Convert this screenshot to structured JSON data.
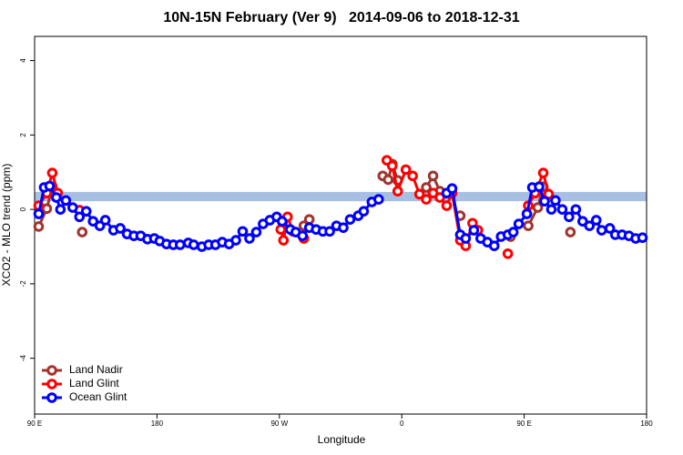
{
  "chart_data": {
    "type": "line",
    "title": "10N-15N February (Ver 9)   2014-09-06 to 2018-12-31",
    "xlabel": "Longitude",
    "ylabel": "XCO2 - MLO trend (ppm)",
    "xlim": [
      90,
      540
    ],
    "ylim": [
      -5.5,
      4.65
    ],
    "xticks": [
      {
        "value": 90,
        "label": "90 E"
      },
      180,
      {
        "value": 270,
        "label": "90 W"
      },
      {
        "value": 360,
        "label": "0"
      },
      {
        "value": 450,
        "label": "90 E"
      },
      {
        "value": 540,
        "label": "180"
      }
    ],
    "yticks": [
      -4,
      -2,
      0,
      2,
      4
    ],
    "band_ylim": [
      0.22,
      0.47
    ],
    "band_color": "#a7bfe3",
    "legend": "bottomleft",
    "series": [
      {
        "name": "Land Nadir",
        "color": "#a0342f",
        "x": [
          93,
          99,
          103,
          null,
          125,
          null,
          288,
          292,
          null,
          346,
          350,
          353,
          357,
          null,
          378,
          383,
          388,
          null,
          403,
          null,
          440,
          null,
          453,
          460,
          464,
          null,
          484
        ],
        "values": [
          -0.46,
          0.02,
          0.61,
          null,
          -0.61,
          null,
          -0.44,
          -0.27,
          null,
          0.9,
          0.8,
          1.22,
          0.78,
          null,
          0.59,
          0.9,
          0.49,
          null,
          -0.17,
          null,
          -0.73,
          null,
          -0.44,
          0.05,
          0.61,
          null,
          -0.61
        ]
      },
      {
        "name": "Land Glint",
        "color": "#ff0000",
        "x": [
          93,
          99,
          103,
          107,
          null,
          123,
          null,
          271,
          273,
          276,
          280,
          null,
          288,
          null,
          349,
          353,
          357,
          363,
          368,
          373,
          378,
          383,
          388,
          393,
          397,
          403,
          407,
          412,
          416,
          null,
          438,
          null,
          453,
          458,
          464,
          468
        ],
        "values": [
          0.1,
          0.44,
          0.98,
          0.44,
          null,
          -0.02,
          null,
          -0.54,
          -0.83,
          -0.2,
          -0.59,
          null,
          -0.78,
          null,
          1.32,
          1.17,
          0.49,
          1.07,
          0.9,
          0.41,
          0.27,
          0.44,
          0.32,
          0.1,
          0.44,
          -0.83,
          -0.98,
          -0.37,
          -0.56,
          null,
          -1.19,
          null,
          0.1,
          0.44,
          0.98,
          0.41
        ]
      },
      {
        "name": "Ocean Glint",
        "color": "#0000ff",
        "x": [
          93,
          97,
          101,
          106,
          109,
          113,
          118,
          123,
          128,
          133,
          138,
          142,
          148,
          153,
          158,
          163,
          168,
          173,
          178,
          182,
          187,
          192,
          197,
          203,
          207,
          213,
          218,
          223,
          228,
          233,
          238,
          243,
          248,
          253,
          258,
          263,
          268,
          272,
          278,
          282,
          287,
          292,
          297,
          302,
          307,
          312,
          317,
          322,
          328,
          332,
          338,
          343,
          null,
          393,
          397,
          403,
          407,
          413,
          418,
          423,
          428,
          433,
          438,
          442,
          446,
          452,
          456,
          461,
          465,
          470,
          473,
          478,
          483,
          488,
          493,
          498,
          503,
          507,
          513,
          517,
          522,
          527,
          532,
          537
        ],
        "values": [
          -0.12,
          0.59,
          0.63,
          0.32,
          0,
          0.24,
          0.05,
          -0.2,
          -0.05,
          -0.32,
          -0.44,
          -0.29,
          -0.56,
          -0.51,
          -0.66,
          -0.71,
          -0.71,
          -0.8,
          -0.78,
          -0.85,
          -0.93,
          -0.95,
          -0.95,
          -0.9,
          -0.95,
          -1.0,
          -0.95,
          -0.95,
          -0.88,
          -0.93,
          -0.83,
          -0.59,
          -0.78,
          -0.61,
          -0.39,
          -0.29,
          -0.2,
          -0.32,
          -0.54,
          -0.61,
          -0.71,
          -0.49,
          -0.54,
          -0.59,
          -0.59,
          -0.44,
          -0.49,
          -0.27,
          -0.17,
          -0.05,
          0.2,
          0.27,
          null,
          0.44,
          0.56,
          -0.68,
          -0.78,
          -0.56,
          -0.78,
          -0.88,
          -0.98,
          -0.73,
          -0.68,
          -0.61,
          -0.39,
          -0.12,
          0.59,
          0.61,
          0.22,
          0,
          0.24,
          0,
          -0.2,
          0,
          -0.32,
          -0.44,
          -0.29,
          -0.56,
          -0.51,
          -0.68,
          -0.68,
          -0.71,
          -0.78,
          -0.76
        ]
      }
    ]
  }
}
